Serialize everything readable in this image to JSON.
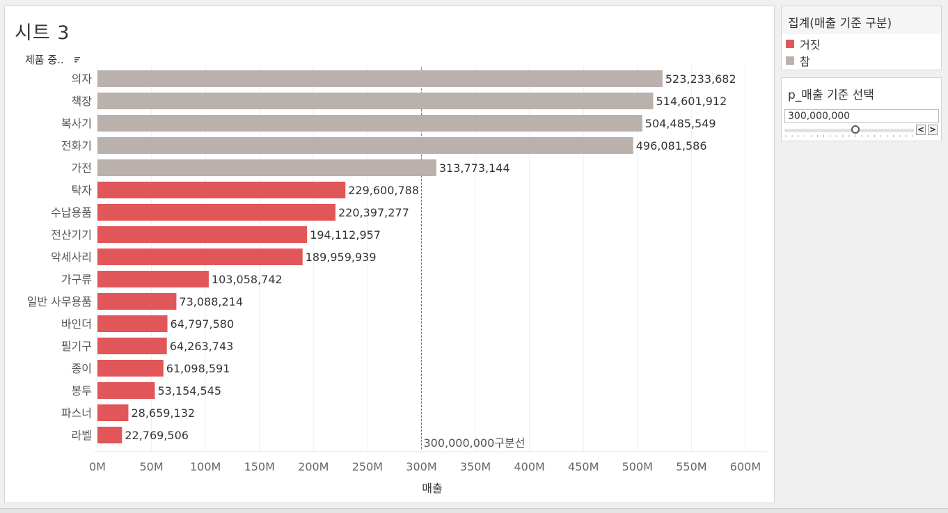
{
  "sheet": {
    "title": "시트 3"
  },
  "chart_data": {
    "type": "bar",
    "orientation": "horizontal",
    "y_field_label": "제품 중..",
    "xlabel": "매출",
    "xlim": [
      0,
      620000000
    ],
    "x_ticks": [
      0,
      50000000,
      100000000,
      150000000,
      200000000,
      250000000,
      300000000,
      350000000,
      400000000,
      450000000,
      500000000,
      550000000,
      600000000
    ],
    "x_tick_labels": [
      "0M",
      "50M",
      "100M",
      "150M",
      "200M",
      "250M",
      "300M",
      "350M",
      "400M",
      "450M",
      "500M",
      "550M",
      "600M"
    ],
    "categories": [
      "의자",
      "책장",
      "복사기",
      "전화기",
      "가전",
      "탁자",
      "수납용품",
      "전산기기",
      "악세사리",
      "가구류",
      "일반 사무용품",
      "바인더",
      "필기구",
      "종이",
      "봉투",
      "파스너",
      "라벨"
    ],
    "values": [
      523233682,
      514601912,
      504485549,
      496081586,
      313773144,
      229600788,
      220397277,
      194112957,
      189959939,
      103058742,
      73088214,
      64797580,
      64263743,
      61098591,
      53154545,
      28659132,
      22769506
    ],
    "value_labels": [
      "523,233,682",
      "514,601,912",
      "504,485,549",
      "496,081,586",
      "313,773,144",
      "229,600,788",
      "220,397,277",
      "194,112,957",
      "189,959,939",
      "103,058,742",
      "73,088,214",
      "64,797,580",
      "64,263,743",
      "61,098,591",
      "53,154,545",
      "28,659,132",
      "22,769,506"
    ],
    "groups": [
      "참",
      "참",
      "참",
      "참",
      "참",
      "거짓",
      "거짓",
      "거짓",
      "거짓",
      "거짓",
      "거짓",
      "거짓",
      "거짓",
      "거짓",
      "거짓",
      "거짓",
      "거짓"
    ],
    "reference_line": {
      "value": 300000000,
      "label": "300,000,000구분선"
    }
  },
  "legend": {
    "title": "집계(매출 기준 구분)",
    "items": [
      {
        "label": "거짓",
        "color": "#e15759"
      },
      {
        "label": "참",
        "color": "#bab0ac"
      }
    ]
  },
  "parameter": {
    "title": "p_매출 기준 선택",
    "value": "300,000,000",
    "slider_fraction": 0.55,
    "prev_label": "<",
    "next_label": ">"
  }
}
